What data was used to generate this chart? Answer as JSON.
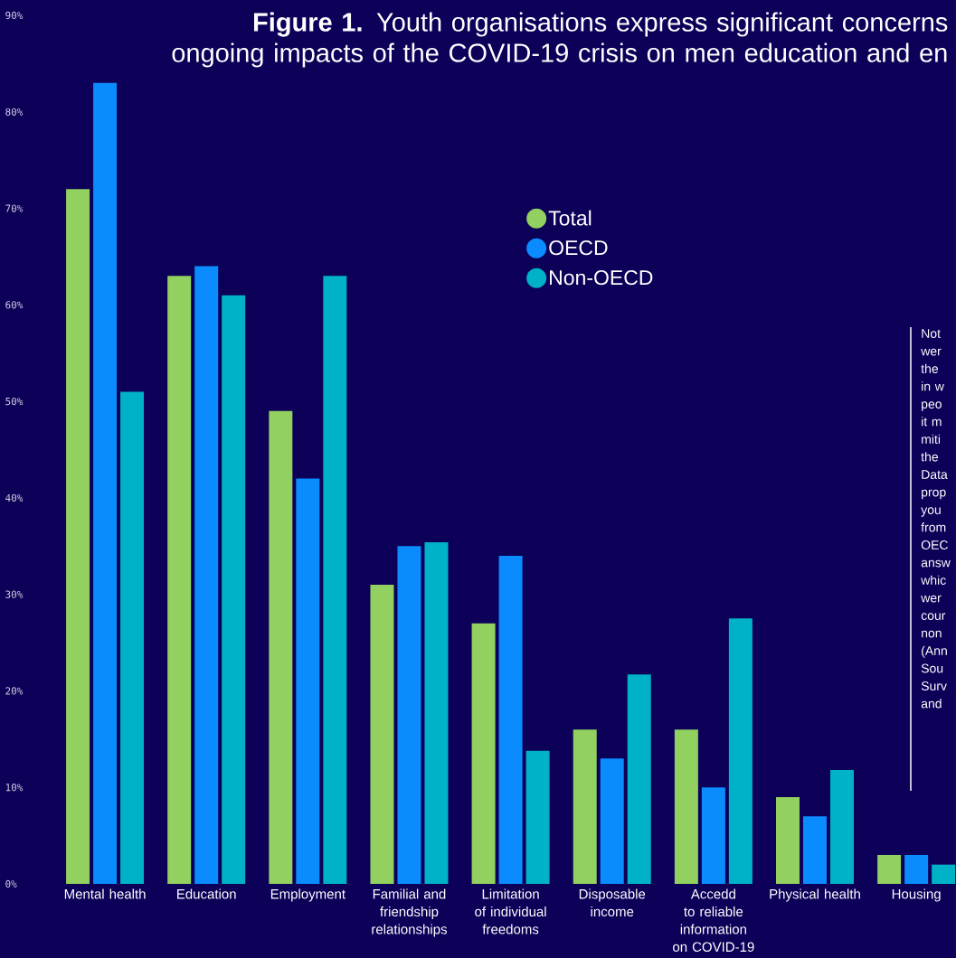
{
  "chart_data": {
    "type": "bar",
    "title": "**Figure 1.** Youth organisations express significant concerns ongoing impacts of the COVID-19 crisis on men education and en",
    "categories": [
      "Mental health",
      "Education",
      "Employment",
      "Familial and friendship relationships",
      "Limitation of individual freedoms",
      "Disposable income",
      "Accedd to reliable information on COVID-19",
      "Physical health",
      "Housing"
    ],
    "series": [
      {
        "name": "Total",
        "color": "#92d05f",
        "values": [
          72,
          63,
          49,
          31,
          27,
          16,
          16,
          9,
          3
        ]
      },
      {
        "name": "OECD",
        "color": "#0a8cff",
        "values": [
          83,
          64,
          42,
          35,
          34,
          13,
          10,
          7,
          3
        ]
      },
      {
        "name": "Non-OECD",
        "color": "#00b2c8",
        "values": [
          51,
          61,
          63,
          35.4,
          13.8,
          21.7,
          27.5,
          11.8,
          2
        ]
      }
    ],
    "ylim": [
      0,
      90
    ],
    "yticks": [
      {
        "value": 0,
        "label": "0%"
      },
      {
        "value": 10,
        "label": "10%"
      },
      {
        "value": 20,
        "label": "20%"
      },
      {
        "value": 30,
        "label": "30%"
      },
      {
        "value": 40,
        "label": "40%"
      },
      {
        "value": 50,
        "label": "50%"
      },
      {
        "value": 60,
        "label": "60%"
      },
      {
        "value": 70,
        "label": "70%"
      },
      {
        "value": 80,
        "label": "80%"
      },
      {
        "value": 90,
        "label": "90%"
      }
    ],
    "legend": "top",
    "grid": false,
    "annotations": [
      "Not wer the in w peo it m miti the Data prop you from OEC answ whic wer cour non (Ann Sou Surv and"
    ]
  }
}
